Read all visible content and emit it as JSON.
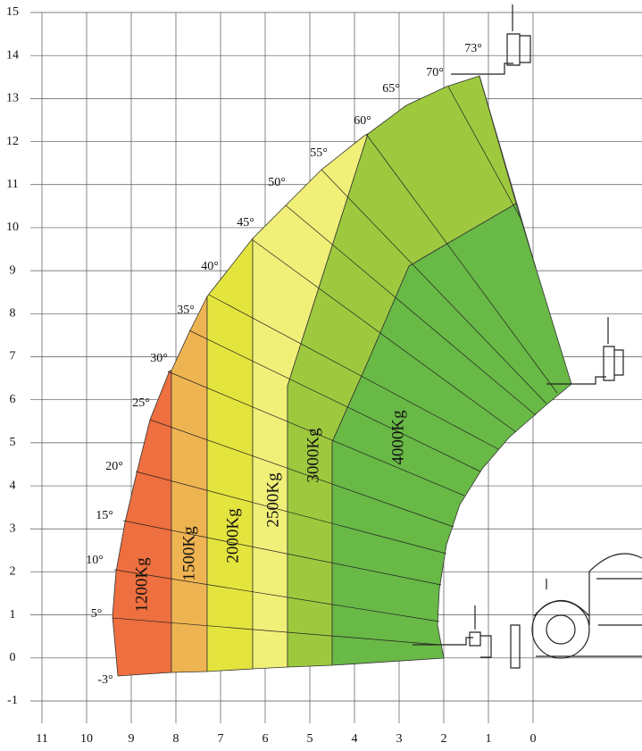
{
  "chart_data": {
    "type": "load",
    "xlim": [
      11,
      0
    ],
    "ylim": [
      -1,
      15
    ],
    "xticks": [
      11,
      10,
      9,
      8,
      7,
      6,
      5,
      4,
      3,
      2,
      1,
      0
    ],
    "yticks": [
      -1,
      0,
      1,
      2,
      3,
      4,
      5,
      6,
      7,
      8,
      9,
      10,
      11,
      12,
      13,
      14,
      15
    ],
    "grid": true,
    "zones": [
      {
        "label": "1200Kg",
        "color": "#ee6f3f"
      },
      {
        "label": "1500Kg",
        "color": "#efb452"
      },
      {
        "label": "2000Kg",
        "color": "#e4e43e"
      },
      {
        "label": "2500Kg",
        "color": "#f0ef78"
      },
      {
        "label": "3000Kg",
        "color": "#9ec93f"
      },
      {
        "label": "4000Kg",
        "color": "#68b946"
      }
    ],
    "angles": [
      {
        "value": -3,
        "label": "-3°"
      },
      {
        "value": 5,
        "label": "5°"
      },
      {
        "value": 10,
        "label": "10°"
      },
      {
        "value": 15,
        "label": "15°"
      },
      {
        "value": 20,
        "label": "20°"
      },
      {
        "value": 25,
        "label": "25°"
      },
      {
        "value": 30,
        "label": "30°"
      },
      {
        "value": 35,
        "label": "35°"
      },
      {
        "value": 40,
        "label": "40°"
      },
      {
        "value": 45,
        "label": "45°"
      },
      {
        "value": 50,
        "label": "50°"
      },
      {
        "value": 55,
        "label": "55°"
      },
      {
        "value": 60,
        "label": "60°"
      },
      {
        "value": 65,
        "label": "65°"
      },
      {
        "value": 70,
        "label": "70°"
      },
      {
        "value": 73,
        "label": "73°"
      }
    ]
  }
}
